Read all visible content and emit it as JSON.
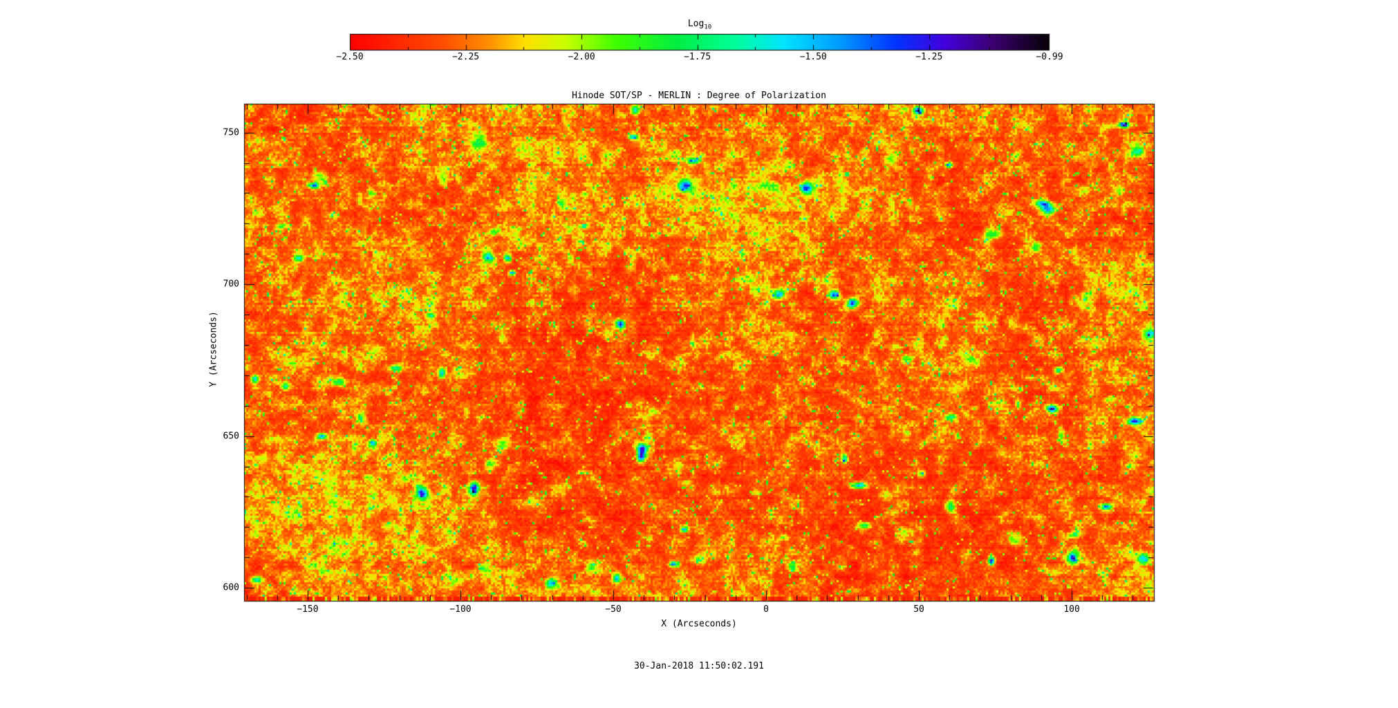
{
  "page": {
    "background": "#ffffff",
    "axis_color": "#000000"
  },
  "chart_data": {
    "type": "heatmap",
    "title": "Hinode SOT/SP - MERLIN : Degree of Polarization",
    "xlabel": "X (Arcseconds)",
    "ylabel": "Y (Arcseconds)",
    "timestamp": "30-Jan-2018 11:50:02.191",
    "xlim": [
      -170.8,
      126.9
    ],
    "ylim": [
      595.7,
      759.5
    ],
    "x_major_ticks": [
      -150,
      -100,
      -50,
      0,
      50,
      100
    ],
    "x_tick_labels": [
      "−150",
      "−100",
      "−50",
      "0",
      "50",
      "100"
    ],
    "x_minor_step": 10,
    "y_major_ticks": [
      600,
      650,
      700,
      750
    ],
    "y_tick_labels": [
      "600",
      "650",
      "700",
      "750"
    ],
    "y_minor_step": 10,
    "grid": false,
    "colorbar": {
      "label": "Log",
      "label_subscript": "10",
      "min": -2.5,
      "max": -0.99,
      "major_ticks": [
        -2.5,
        -2.25,
        -2.0,
        -1.75,
        -1.5,
        -1.25,
        -0.99
      ],
      "tick_labels": [
        "−2.50",
        "−2.25",
        "−2.00",
        "−1.75",
        "−1.50",
        "−1.25",
        "−0.99"
      ],
      "orientation": "horizontal",
      "palette_stops": [
        [
          0.0,
          "#ff0000"
        ],
        [
          0.13,
          "#ff4c00"
        ],
        [
          0.2,
          "#ff9000"
        ],
        [
          0.25,
          "#ffe000"
        ],
        [
          0.31,
          "#c8ff00"
        ],
        [
          0.38,
          "#40ff00"
        ],
        [
          0.47,
          "#00ee44"
        ],
        [
          0.55,
          "#00ff9a"
        ],
        [
          0.62,
          "#00e4ff"
        ],
        [
          0.7,
          "#009cff"
        ],
        [
          0.78,
          "#0034ff"
        ],
        [
          0.85,
          "#4400dd"
        ],
        [
          0.92,
          "#3c0070"
        ],
        [
          1.0,
          "#060006"
        ]
      ]
    },
    "field": {
      "description": "Quiet-Sun log10 degree-of-polarization map: granular red/orange background near -2.4 with yellow magnetic-network lanes near -2.1, sparse green specks near -1.9, and isolated cyan/blue flux concentrations; bottom edge rows show saturated red vertical stripe artifacts",
      "background_log10_mean": -2.38,
      "network_log10": -2.1,
      "seed": 1337,
      "notable_features": [
        {
          "x": -27,
          "y": 733,
          "log10": -1.4
        },
        {
          "x": 13,
          "y": 732,
          "log10": -1.35
        },
        {
          "x": 90,
          "y": 727,
          "log10": -1.45
        },
        {
          "x": 22,
          "y": 697,
          "log10": -1.35
        },
        {
          "x": -41,
          "y": 646,
          "log10": -1.3
        },
        {
          "x": -96,
          "y": 633,
          "log10": -1.4
        },
        {
          "x": 30,
          "y": 634,
          "log10": -1.55
        },
        {
          "x": 111,
          "y": 627,
          "log10": -1.45
        },
        {
          "x": 60,
          "y": 627,
          "log10": -1.7
        },
        {
          "x": 100,
          "y": 610,
          "log10": -1.45
        },
        {
          "x": -167,
          "y": 603,
          "log10": -1.6
        },
        {
          "x": -153,
          "y": 709,
          "log10": -1.75
        },
        {
          "x": -85,
          "y": 709,
          "log10": -1.6
        },
        {
          "x": -24,
          "y": 741,
          "log10": -1.7
        },
        {
          "x": 92,
          "y": 725,
          "log10": -1.5
        },
        {
          "x": 120,
          "y": 655,
          "log10": -1.55
        },
        {
          "x": 123,
          "y": 610,
          "log10": -1.65
        },
        {
          "x": 125,
          "y": 684,
          "log10": -1.75
        },
        {
          "x": 121,
          "y": 744,
          "log10": -1.7
        },
        {
          "x": -140,
          "y": 668,
          "log10": -1.8
        },
        {
          "x": -110,
          "y": 690,
          "log10": -1.75
        }
      ]
    }
  }
}
